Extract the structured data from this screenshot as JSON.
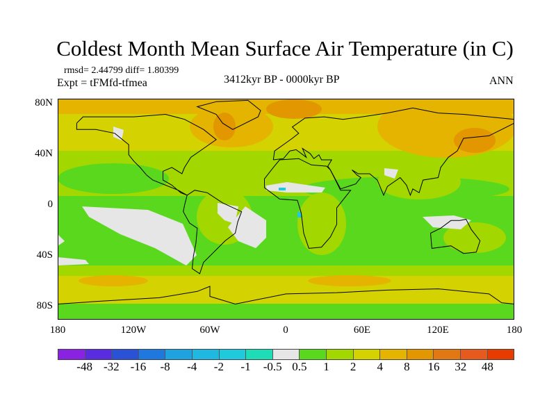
{
  "title": "Coldest Month Mean Surface Air Temperature (in C)",
  "stats": "rmsd= 2.44799 diff= 1.80399",
  "expt": "Expt = tFMfd-tfmea",
  "period": "3412kyr BP - 0000kyr BP",
  "season": "ANN",
  "lat_labels": [
    "80N",
    "40N",
    "0",
    "40S",
    "80S"
  ],
  "lon_labels": [
    "180",
    "120W",
    "60W",
    "0",
    "60E",
    "120E",
    "180"
  ],
  "colorbar": {
    "labels": [
      "-48",
      "-32",
      "-16",
      "-8",
      "-4",
      "-2",
      "-1",
      "-0.5",
      "0.5",
      "1",
      "2",
      "4",
      "8",
      "16",
      "32",
      "48"
    ],
    "colors": [
      "#8a22e2",
      "#5a2ce0",
      "#2a52d6",
      "#1e78de",
      "#1ea2e0",
      "#1eb8e0",
      "#1ecadc",
      "#1edcb6",
      "#e6e6e6",
      "#5ad81e",
      "#a2d800",
      "#d4d200",
      "#e4b400",
      "#e29600",
      "#e27814",
      "#e65a1e",
      "#e63c00"
    ]
  }
}
